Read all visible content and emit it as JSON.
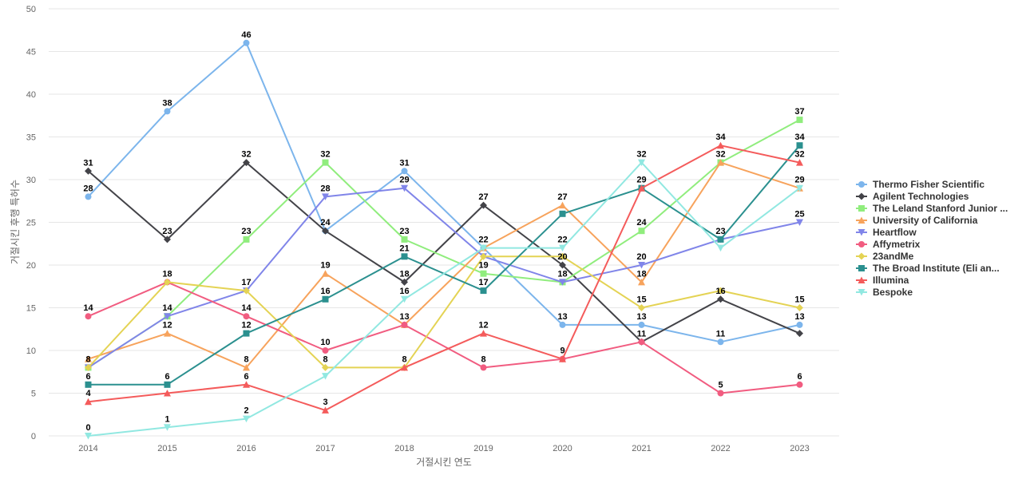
{
  "chart_data": {
    "type": "line",
    "title": "",
    "xlabel": "거절시킨 연도",
    "ylabel": "거절시킨 후행 특허수",
    "ylim": [
      0,
      50
    ],
    "ytick_step": 5,
    "grid": true,
    "legend_position": "right",
    "categories": [
      "2014",
      "2015",
      "2016",
      "2017",
      "2018",
      "2019",
      "2020",
      "2021",
      "2022",
      "2023"
    ],
    "series": [
      {
        "name": "Thermo Fisher Scientific",
        "color": "#7cb5ec",
        "marker": "circle",
        "values": [
          28,
          38,
          46,
          24,
          31,
          22,
          13,
          13,
          11,
          13
        ]
      },
      {
        "name": "Agilent Technologies",
        "color": "#434348",
        "marker": "diamond",
        "values": [
          31,
          23,
          32,
          24,
          18,
          27,
          20,
          11,
          16,
          12
        ]
      },
      {
        "name": "The Leland Stanford Junior ...",
        "color": "#90ed7d",
        "marker": "square",
        "values": [
          8,
          14,
          23,
          32,
          23,
          19,
          18,
          24,
          32,
          37
        ]
      },
      {
        "name": "University of California",
        "color": "#f7a35c",
        "marker": "triangle",
        "values": [
          9,
          12,
          8,
          19,
          13,
          22,
          27,
          18,
          32,
          29
        ]
      },
      {
        "name": "Heartflow",
        "color": "#8085e9",
        "marker": "triangle-down",
        "values": [
          8,
          14,
          17,
          28,
          29,
          21,
          18,
          20,
          23,
          25
        ]
      },
      {
        "name": "Affymetrix",
        "color": "#f15c80",
        "marker": "circle",
        "values": [
          14,
          18,
          14,
          10,
          13,
          8,
          9,
          11,
          5,
          6
        ]
      },
      {
        "name": "23andMe",
        "color": "#e4d354",
        "marker": "diamond",
        "values": [
          8,
          18,
          17,
          8,
          8,
          21,
          21,
          15,
          17,
          15
        ]
      },
      {
        "name": "The Broad Institute (Eli an...",
        "color": "#2b908f",
        "marker": "square",
        "values": [
          6,
          6,
          12,
          16,
          21,
          17,
          26,
          29,
          23,
          34
        ]
      },
      {
        "name": "Illumina",
        "color": "#f45b5b",
        "marker": "triangle",
        "values": [
          4,
          5,
          6,
          3,
          8,
          12,
          9,
          29,
          34,
          32
        ]
      },
      {
        "name": "Bespoke",
        "color": "#91e8e1",
        "marker": "triangle-down",
        "values": [
          0,
          1,
          2,
          7,
          16,
          22,
          22,
          32,
          22,
          29
        ]
      }
    ],
    "data_labels": [
      {
        "x": "2014",
        "text": "31"
      },
      {
        "x": "2014",
        "text": "28"
      },
      {
        "x": "2014",
        "text": "14"
      },
      {
        "x": "2014",
        "text": "8"
      },
      {
        "x": "2014",
        "text": "6"
      },
      {
        "x": "2014",
        "text": "4"
      },
      {
        "x": "2014",
        "text": "0"
      },
      {
        "x": "2015",
        "text": "38"
      },
      {
        "x": "2015",
        "text": "23"
      },
      {
        "x": "2015",
        "text": "18"
      },
      {
        "x": "2015",
        "text": "14"
      },
      {
        "x": "2015",
        "text": "12"
      },
      {
        "x": "2015",
        "text": "6"
      },
      {
        "x": "2015",
        "text": "1"
      },
      {
        "x": "2016",
        "text": "46"
      },
      {
        "x": "2016",
        "text": "32"
      },
      {
        "x": "2016",
        "text": "23"
      },
      {
        "x": "2016",
        "text": "17"
      },
      {
        "x": "2016",
        "text": "14"
      },
      {
        "x": "2016",
        "text": "12"
      },
      {
        "x": "2016",
        "text": "8"
      },
      {
        "x": "2016",
        "text": "6"
      },
      {
        "x": "2016",
        "text": "2"
      },
      {
        "x": "2017",
        "text": "32"
      },
      {
        "x": "2017",
        "text": "28"
      },
      {
        "x": "2017",
        "text": "24"
      },
      {
        "x": "2017",
        "text": "19"
      },
      {
        "x": "2017",
        "text": "16"
      },
      {
        "x": "2017",
        "text": "10"
      },
      {
        "x": "2017",
        "text": "8"
      },
      {
        "x": "2017",
        "text": "3"
      },
      {
        "x": "2018",
        "text": "31"
      },
      {
        "x": "2018",
        "text": "29"
      },
      {
        "x": "2018",
        "text": "23"
      },
      {
        "x": "2018",
        "text": "21"
      },
      {
        "x": "2018",
        "text": "18"
      },
      {
        "x": "2018",
        "text": "16"
      },
      {
        "x": "2018",
        "text": "13"
      },
      {
        "x": "2018",
        "text": "8"
      },
      {
        "x": "2019",
        "text": "27"
      },
      {
        "x": "2019",
        "text": "22"
      },
      {
        "x": "2019",
        "text": "19"
      },
      {
        "x": "2019",
        "text": "17"
      },
      {
        "x": "2019",
        "text": "12"
      },
      {
        "x": "2019",
        "text": "8"
      },
      {
        "x": "2020",
        "text": "27"
      },
      {
        "x": "2020",
        "text": "22"
      },
      {
        "x": "2020",
        "text": "20"
      },
      {
        "x": "2020",
        "text": "18"
      },
      {
        "x": "2020",
        "text": "13"
      },
      {
        "x": "2020",
        "text": "9"
      },
      {
        "x": "2021",
        "text": "32"
      },
      {
        "x": "2021",
        "text": "29"
      },
      {
        "x": "2021",
        "text": "24"
      },
      {
        "x": "2021",
        "text": "20"
      },
      {
        "x": "2021",
        "text": "18"
      },
      {
        "x": "2021",
        "text": "15"
      },
      {
        "x": "2021",
        "text": "13"
      },
      {
        "x": "2021",
        "text": "11"
      },
      {
        "x": "2022",
        "text": "34"
      },
      {
        "x": "2022",
        "text": "32"
      },
      {
        "x": "2022",
        "text": "23"
      },
      {
        "x": "2022",
        "text": "16"
      },
      {
        "x": "2022",
        "text": "11"
      },
      {
        "x": "2022",
        "text": "5"
      },
      {
        "x": "2023",
        "text": "37"
      },
      {
        "x": "2023",
        "text": "34"
      },
      {
        "x": "2023",
        "text": "32"
      },
      {
        "x": "2023",
        "text": "29"
      },
      {
        "x": "2023",
        "text": "25"
      },
      {
        "x": "2023",
        "text": "15"
      },
      {
        "x": "2023",
        "text": "13"
      },
      {
        "x": "2023",
        "text": "6"
      }
    ]
  }
}
